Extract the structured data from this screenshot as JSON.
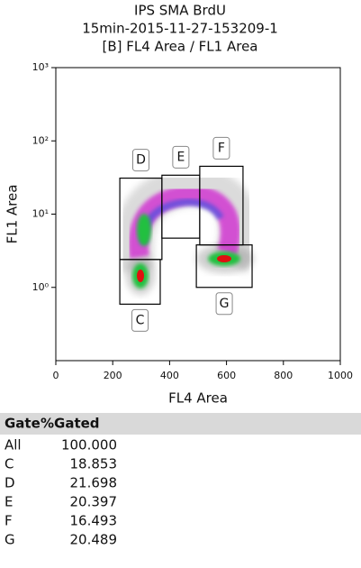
{
  "chart_data": {
    "type": "density",
    "title_lines": [
      "IPS SMA BrdU",
      "15min-2015-11-27-153209-1",
      "[B] FL4 Area / FL1 Area"
    ],
    "x_label": "FL4 Area",
    "y_label": "FL1 Area",
    "xlim": [
      0,
      1000
    ],
    "xticks": [
      0,
      200,
      400,
      600,
      800,
      1000
    ],
    "ylim": [
      0.1,
      1000
    ],
    "y_log": true,
    "yticks": [
      {
        "value": 1,
        "label": "10⁰"
      },
      {
        "value": 10,
        "label": "10¹"
      },
      {
        "value": 100,
        "label": "10²"
      },
      {
        "value": 1000,
        "label": "10³"
      }
    ],
    "gates": [
      {
        "name": "D",
        "xlim": [
          225,
          373
        ],
        "ylim": [
          2.4,
          31
        ]
      },
      {
        "name": "C",
        "xlim": [
          225,
          367
        ],
        "ylim": [
          0.59,
          2.4
        ]
      },
      {
        "name": "E",
        "xlim": [
          373,
          506
        ],
        "ylim": [
          4.7,
          34
        ]
      },
      {
        "name": "F",
        "xlim": [
          506,
          658
        ],
        "ylim": [
          3.8,
          45
        ]
      },
      {
        "name": "G",
        "xlim": [
          494,
          690
        ],
        "ylim": [
          1.0,
          3.8
        ]
      }
    ]
  },
  "table": {
    "header": [
      "Gate",
      "%Gated"
    ],
    "rows": [
      [
        "All",
        "100.000"
      ],
      [
        "C",
        "18.853"
      ],
      [
        "D",
        "21.698"
      ],
      [
        "E",
        "20.397"
      ],
      [
        "F",
        "16.493"
      ],
      [
        "G",
        "20.489"
      ]
    ]
  }
}
